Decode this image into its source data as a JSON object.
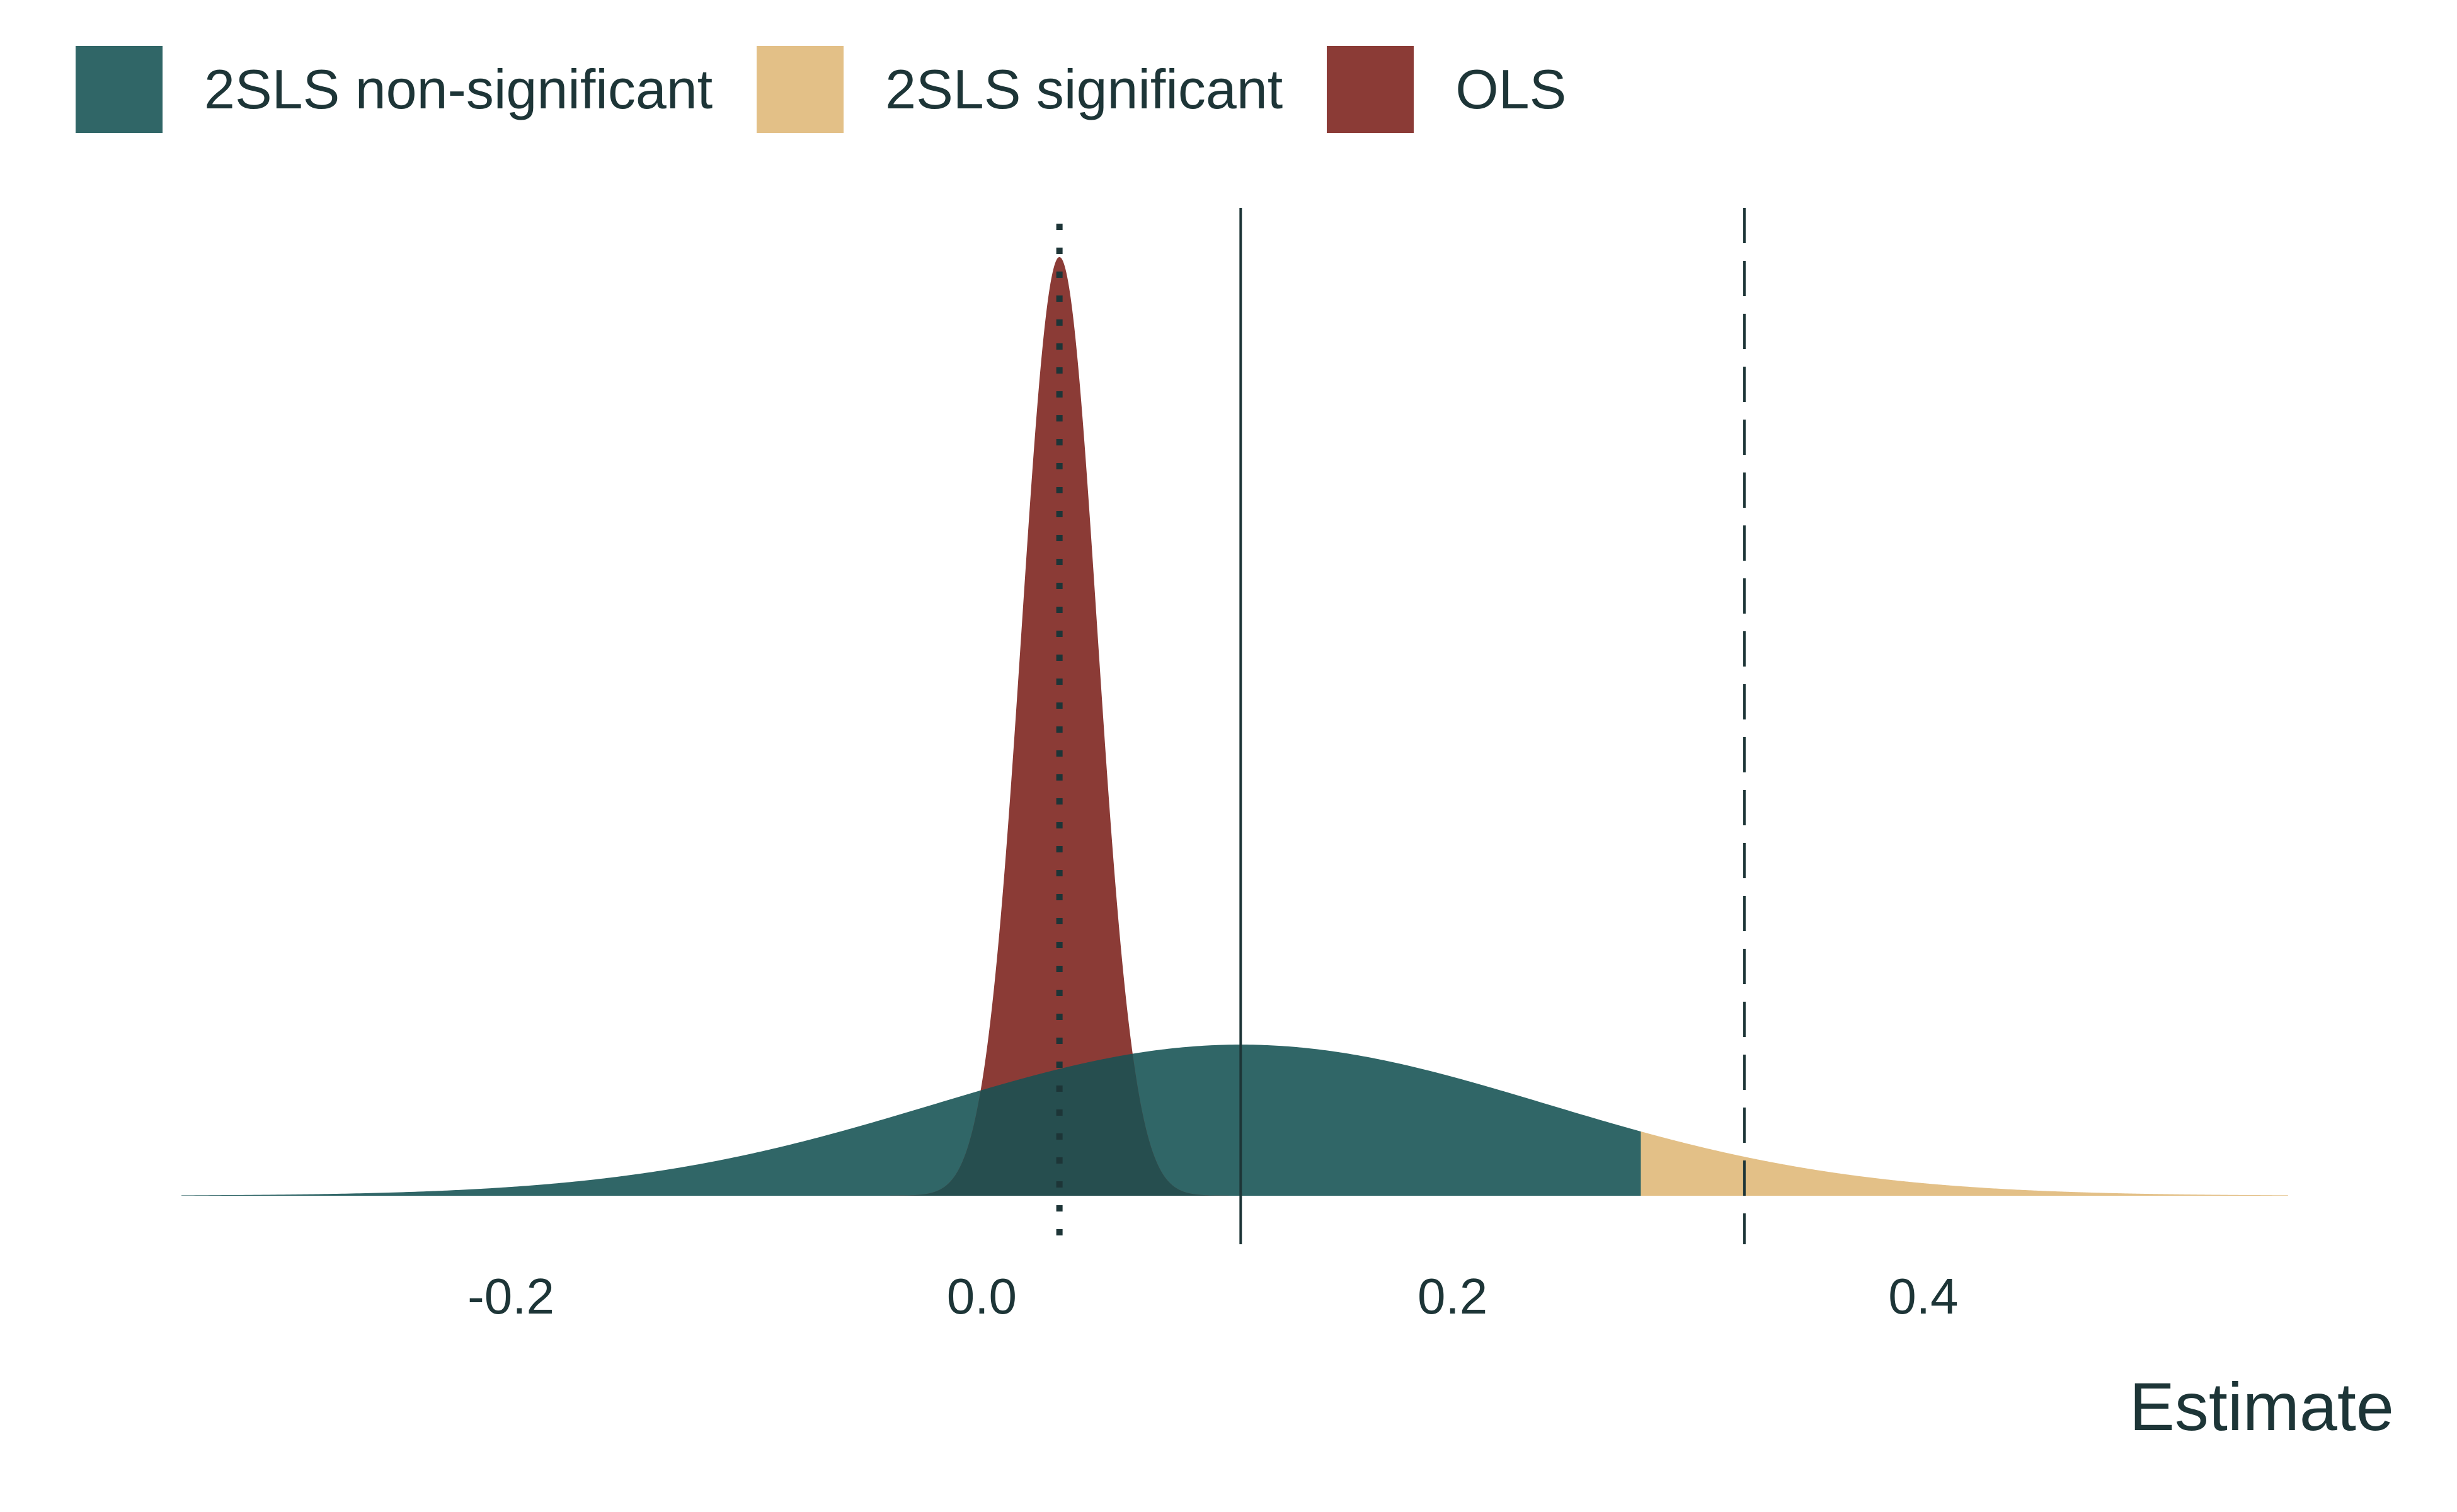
{
  "legend": {
    "items": [
      {
        "key": "nonsig",
        "label": "2SLS non-significant",
        "color": "#306667"
      },
      {
        "key": "sig",
        "label": "2SLS significant",
        "color": "#E3C087"
      },
      {
        "key": "ols",
        "label": "OLS",
        "color": "#8B3B36"
      }
    ]
  },
  "chart_data": {
    "type": "area",
    "title": "",
    "xlabel": "Estimate",
    "ylabel": "",
    "xlim": [
      -0.34,
      0.555
    ],
    "x_ticks": [
      -0.2,
      0.0,
      0.2,
      0.4
    ],
    "x_tick_labels": [
      "-0.2",
      "0.0",
      "0.2",
      "0.4"
    ],
    "grid": false,
    "legend_position": "top-left",
    "series": [
      {
        "name": "2SLS non-significant",
        "distribution": "normal",
        "mean": 0.11,
        "sd": 0.13,
        "peak_relative_height": 0.161,
        "x_range": [
          -0.34,
          0.28
        ],
        "color": "#306667"
      },
      {
        "name": "2SLS significant",
        "distribution": "normal",
        "mean": 0.11,
        "sd": 0.13,
        "peak_relative_height": 0.161,
        "x_range": [
          0.28,
          0.555
        ],
        "color": "#E3C087"
      },
      {
        "name": "OLS",
        "distribution": "normal",
        "mean": 0.033,
        "sd": 0.016,
        "peak_relative_height": 1.0,
        "color": "#8B3B36"
      }
    ],
    "reference_lines": [
      {
        "x": 0.033,
        "style": "dotted"
      },
      {
        "x": 0.11,
        "style": "solid"
      },
      {
        "x": 0.324,
        "style": "dashed"
      }
    ],
    "colors": {
      "overlap": "#264E4F",
      "axis_text": "#1d3537"
    }
  }
}
